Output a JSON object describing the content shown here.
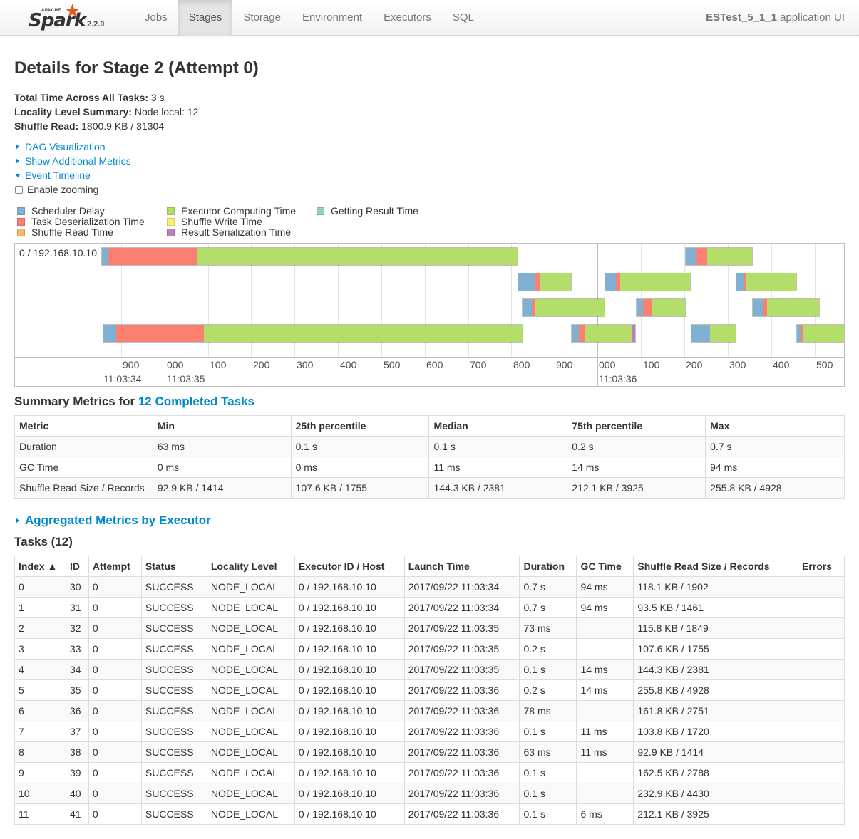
{
  "nav": {
    "brand_top": "APACHE",
    "brand_name": "Spark",
    "version": "2.2.0",
    "items": [
      "Jobs",
      "Stages",
      "Storage",
      "Environment",
      "Executors",
      "SQL"
    ],
    "active": "Stages",
    "app_name": "ESTest_5_1_1",
    "app_suffix": " application UI"
  },
  "page": {
    "title": "Details for Stage 2 (Attempt 0)",
    "total_time_label": "Total Time Across All Tasks:",
    "total_time_value": " 3 s",
    "locality_label": "Locality Level Summary:",
    "locality_value": " Node local: 12",
    "shuffle_label": "Shuffle Read:",
    "shuffle_value": " 1800.9 KB / 31304"
  },
  "toggles": {
    "dag": "DAG Visualization",
    "additional": "Show Additional Metrics",
    "timeline": "Event Timeline",
    "zoom": "Enable zooming"
  },
  "legend": [
    {
      "label": "Scheduler Delay",
      "color": "#80b1d3"
    },
    {
      "label": "Task Deserialization Time",
      "color": "#fb8072"
    },
    {
      "label": "Shuffle Read Time",
      "color": "#fdb462"
    },
    {
      "label": "Executor Computing Time",
      "color": "#b3de69"
    },
    {
      "label": "Shuffle Write Time",
      "color": "#ffed6f"
    },
    {
      "label": "Result Serialization Time",
      "color": "#bc80bd"
    },
    {
      "label": "Getting Result Time",
      "color": "#8dd3c7"
    }
  ],
  "timeline": {
    "executor_label": "0 / 192.168.10.10",
    "minor_ticks": [
      "900",
      "000",
      "100",
      "200",
      "300",
      "400",
      "500",
      "600",
      "700",
      "800",
      "900",
      "000",
      "100",
      "200",
      "300",
      "400",
      "500"
    ],
    "major_ticks": [
      "11:03:34",
      "11:03:35",
      "11:03:36"
    ]
  },
  "summary_metrics": {
    "title_prefix": "Summary Metrics for ",
    "title_link": "12 Completed Tasks",
    "headers": [
      "Metric",
      "Min",
      "25th percentile",
      "Median",
      "75th percentile",
      "Max"
    ],
    "rows": [
      [
        "Duration",
        "63 ms",
        "0.1 s",
        "0.1 s",
        "0.2 s",
        "0.7 s"
      ],
      [
        "GC Time",
        "0 ms",
        "0 ms",
        "11 ms",
        "14 ms",
        "94 ms"
      ],
      [
        "Shuffle Read Size / Records",
        "92.9 KB / 1414",
        "107.6 KB / 1755",
        "144.3 KB / 2381",
        "212.1 KB / 3925",
        "255.8 KB / 4928"
      ]
    ]
  },
  "aggregated": "Aggregated Metrics by Executor",
  "tasks": {
    "title": "Tasks (12)",
    "headers": [
      "Index ▲",
      "ID",
      "Attempt",
      "Status",
      "Locality Level",
      "Executor ID / Host",
      "Launch Time",
      "Duration",
      "GC Time",
      "Shuffle Read Size / Records",
      "Errors"
    ],
    "rows": [
      [
        "0",
        "30",
        "0",
        "SUCCESS",
        "NODE_LOCAL",
        "0 / 192.168.10.10",
        "2017/09/22 11:03:34",
        "0.7 s",
        "94 ms",
        "118.1 KB / 1902",
        ""
      ],
      [
        "1",
        "31",
        "0",
        "SUCCESS",
        "NODE_LOCAL",
        "0 / 192.168.10.10",
        "2017/09/22 11:03:34",
        "0.7 s",
        "94 ms",
        "93.5 KB / 1461",
        ""
      ],
      [
        "2",
        "32",
        "0",
        "SUCCESS",
        "NODE_LOCAL",
        "0 / 192.168.10.10",
        "2017/09/22 11:03:35",
        "73 ms",
        "",
        "115.8 KB / 1849",
        ""
      ],
      [
        "3",
        "33",
        "0",
        "SUCCESS",
        "NODE_LOCAL",
        "0 / 192.168.10.10",
        "2017/09/22 11:03:35",
        "0.2 s",
        "",
        "107.6 KB / 1755",
        ""
      ],
      [
        "4",
        "34",
        "0",
        "SUCCESS",
        "NODE_LOCAL",
        "0 / 192.168.10.10",
        "2017/09/22 11:03:35",
        "0.1 s",
        "14 ms",
        "144.3 KB / 2381",
        ""
      ],
      [
        "5",
        "35",
        "0",
        "SUCCESS",
        "NODE_LOCAL",
        "0 / 192.168.10.10",
        "2017/09/22 11:03:36",
        "0.2 s",
        "14 ms",
        "255.8 KB / 4928",
        ""
      ],
      [
        "6",
        "36",
        "0",
        "SUCCESS",
        "NODE_LOCAL",
        "0 / 192.168.10.10",
        "2017/09/22 11:03:36",
        "78 ms",
        "",
        "161.8 KB / 2751",
        ""
      ],
      [
        "7",
        "37",
        "0",
        "SUCCESS",
        "NODE_LOCAL",
        "0 / 192.168.10.10",
        "2017/09/22 11:03:36",
        "0.1 s",
        "11 ms",
        "103.8 KB / 1720",
        ""
      ],
      [
        "8",
        "38",
        "0",
        "SUCCESS",
        "NODE_LOCAL",
        "0 / 192.168.10.10",
        "2017/09/22 11:03:36",
        "63 ms",
        "11 ms",
        "92.9 KB / 1414",
        ""
      ],
      [
        "9",
        "39",
        "0",
        "SUCCESS",
        "NODE_LOCAL",
        "0 / 192.168.10.10",
        "2017/09/22 11:03:36",
        "0.1 s",
        "",
        "162.5 KB / 2788",
        ""
      ],
      [
        "10",
        "40",
        "0",
        "SUCCESS",
        "NODE_LOCAL",
        "0 / 192.168.10.10",
        "2017/09/22 11:03:36",
        "0.1 s",
        "",
        "232.9 KB / 4430",
        ""
      ],
      [
        "11",
        "41",
        "0",
        "SUCCESS",
        "NODE_LOCAL",
        "0 / 192.168.10.10",
        "2017/09/22 11:03:36",
        "0.1 s",
        "6 ms",
        "212.1 KB / 3925",
        ""
      ]
    ]
  }
}
